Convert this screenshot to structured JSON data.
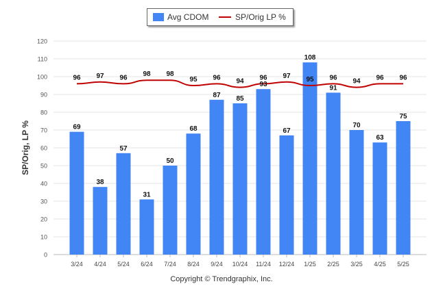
{
  "chart_data": {
    "type": "bar",
    "categories": [
      "3/24",
      "4/24",
      "5/24",
      "6/24",
      "7/24",
      "8/24",
      "9/24",
      "10/24",
      "11/24",
      "12/24",
      "1/25",
      "2/25",
      "3/25",
      "4/25",
      "5/25"
    ],
    "series": [
      {
        "name": "Avg CDOM",
        "type": "bar",
        "color": "#4285f4",
        "values": [
          69,
          38,
          57,
          31,
          50,
          68,
          87,
          85,
          93,
          67,
          108,
          91,
          70,
          63,
          75
        ]
      },
      {
        "name": "SP/Orig LP %",
        "type": "line",
        "color": "#c00000",
        "values": [
          96,
          97,
          96,
          98,
          98,
          95,
          96,
          94,
          96,
          97,
          95,
          96,
          94,
          96,
          96
        ]
      }
    ],
    "ylabel": "SP/Orig, LP %",
    "ylim": [
      0,
      120
    ],
    "yticks": [
      0,
      10,
      20,
      30,
      40,
      50,
      60,
      70,
      80,
      90,
      100,
      110,
      120
    ],
    "grid": true,
    "legend": "top-center"
  },
  "footer": {
    "copyright": "Copyright © Trendgraphix, Inc."
  }
}
